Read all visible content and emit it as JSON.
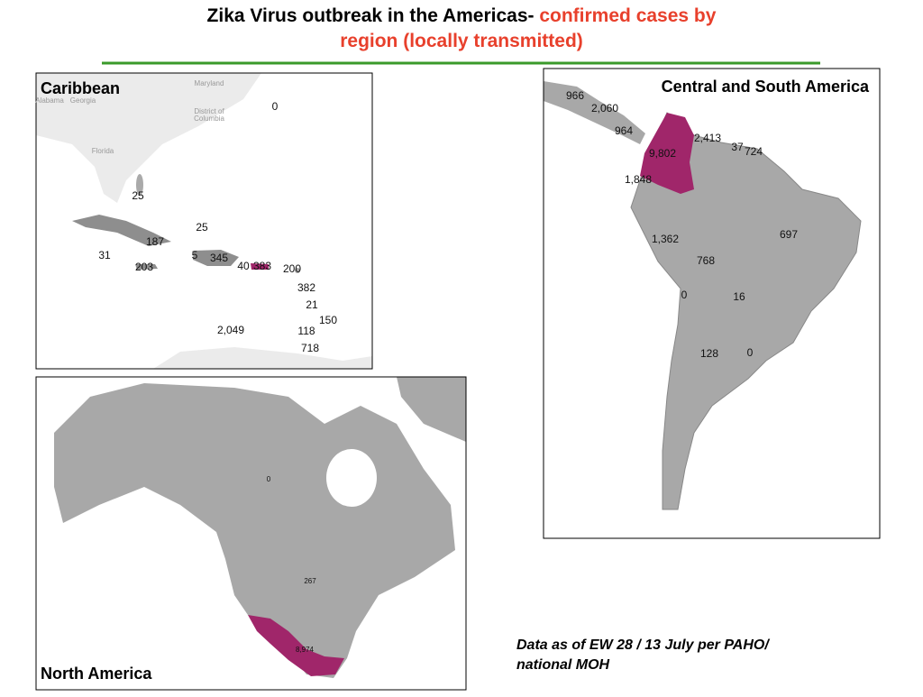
{
  "title": {
    "black": "Zika Virus outbreak in the Americas- ",
    "red_line1": "confirmed cases by",
    "red_line2": "region (locally transmitted)"
  },
  "panels": [
    {
      "title": "Caribbean",
      "base_labels": [
        "Maryland",
        "District of",
        "Columbia",
        "Alabama",
        "Georgia",
        "Florida"
      ],
      "labels": [
        "0",
        "25",
        "25",
        "187",
        "31",
        "5",
        "345",
        "40",
        "383",
        "200",
        "203",
        "382",
        "21",
        "150",
        "2,049",
        "118",
        "718"
      ]
    },
    {
      "title": "Central and South America",
      "labels": [
        "966",
        "2,060",
        "964",
        "2,413",
        "37",
        "724",
        "9,802",
        "1,848",
        "697",
        "1,362",
        "768",
        "0",
        "16",
        "128",
        "0"
      ]
    },
    {
      "title": "North America",
      "labels": [
        "0",
        "267",
        "8,974"
      ]
    }
  ],
  "note": [
    "Data as of EW 28 / 13 July per PAHO/",
    "national MOH"
  ]
}
